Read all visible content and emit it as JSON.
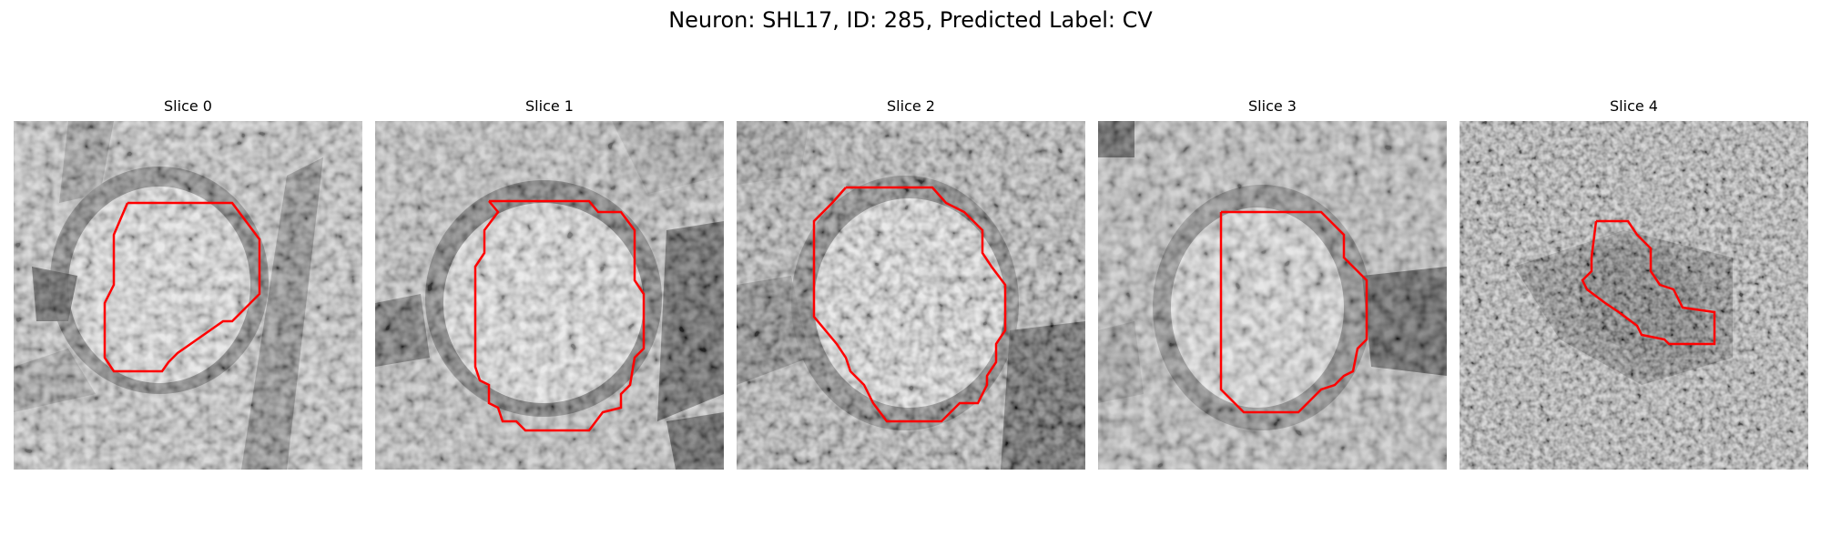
{
  "figure": {
    "title": "Neuron: SHL17, ID: 285, Predicted Label: CV"
  },
  "panels": [
    {
      "title": "Slice 0",
      "contour_color": "#ff0000"
    },
    {
      "title": "Slice 1",
      "contour_color": "#ff0000"
    },
    {
      "title": "Slice 2",
      "contour_color": "#ff0000"
    },
    {
      "title": "Slice 3",
      "contour_color": "#ff0000"
    },
    {
      "title": "Slice 4",
      "contour_color": "#ff0000"
    }
  ]
}
